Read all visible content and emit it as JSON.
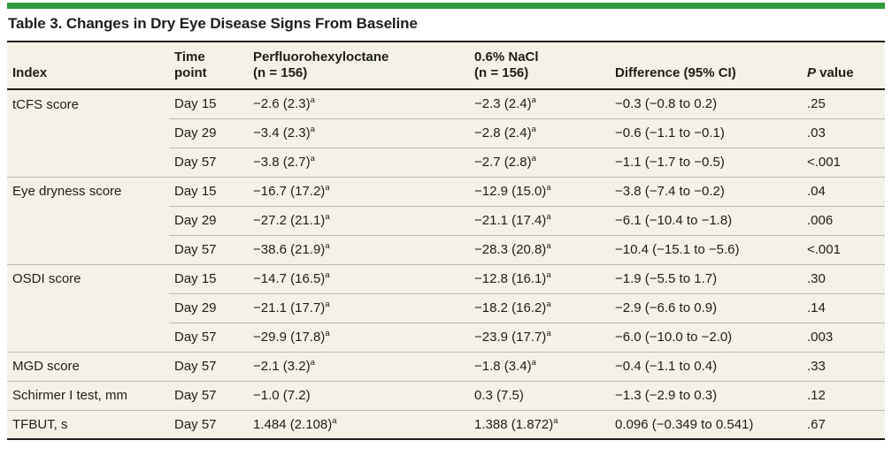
{
  "title": "Table 3. Changes in Dry Eye Disease Signs From Baseline",
  "colors": {
    "accent-bar": "#2f9b3c",
    "table-bg": "#f4f1e6",
    "text": "#1d1d1b",
    "rule-dark": "#1d1d1b",
    "rule-light": "#bdbab0",
    "page-bg": "#ffffff"
  },
  "columns": {
    "index": "Index",
    "time_line1": "Time",
    "time_line2": "point",
    "drug_line1": "Perfluorohexyloctane",
    "drug_line2": "(n = 156)",
    "nacl_line1": "0.6% NaCl",
    "nacl_line2": "(n = 156)",
    "difference": "Difference (95% CI)",
    "p_italic": "P",
    "p_rest": " value"
  },
  "rows": [
    {
      "index": "tCFS score",
      "time": "Day 15",
      "drug": "−2.6 (2.3)",
      "drug_sup": "a",
      "nacl": "−2.3 (2.4)",
      "nacl_sup": "a",
      "diff": "−0.3 (−0.8 to 0.2)",
      "p": ".25"
    },
    {
      "index": "",
      "time": "Day 29",
      "drug": "−3.4 (2.3)",
      "drug_sup": "a",
      "nacl": "−2.8 (2.4)",
      "nacl_sup": "a",
      "diff": "−0.6 (−1.1 to −0.1)",
      "p": ".03"
    },
    {
      "index": "",
      "time": "Day 57",
      "drug": "−3.8 (2.7)",
      "drug_sup": "a",
      "nacl": "−2.7 (2.8)",
      "nacl_sup": "a",
      "diff": "−1.1 (−1.7 to −0.5)",
      "p": "<.001"
    },
    {
      "index": "Eye dryness score",
      "time": "Day 15",
      "drug": "−16.7 (17.2)",
      "drug_sup": "a",
      "nacl": "−12.9 (15.0)",
      "nacl_sup": "a",
      "diff": "−3.8 (−7.4 to −0.2)",
      "p": ".04"
    },
    {
      "index": "",
      "time": "Day 29",
      "drug": "−27.2 (21.1)",
      "drug_sup": "a",
      "nacl": "−21.1 (17.4)",
      "nacl_sup": "a",
      "diff": "−6.1 (−10.4 to −1.8)",
      "p": ".006"
    },
    {
      "index": "",
      "time": "Day 57",
      "drug": "−38.6 (21.9)",
      "drug_sup": "a",
      "nacl": "−28.3 (20.8)",
      "nacl_sup": "a",
      "diff": "−10.4 (−15.1 to −5.6)",
      "p": "<.001"
    },
    {
      "index": "OSDI score",
      "time": "Day 15",
      "drug": "−14.7 (16.5)",
      "drug_sup": "a",
      "nacl": "−12.8 (16.1)",
      "nacl_sup": "a",
      "diff": "−1.9 (−5.5 to 1.7)",
      "p": ".30"
    },
    {
      "index": "",
      "time": "Day 29",
      "drug": "−21.1 (17.7)",
      "drug_sup": "a",
      "nacl": "−18.2 (16.2)",
      "nacl_sup": "a",
      "diff": "−2.9 (−6.6 to 0.9)",
      "p": ".14"
    },
    {
      "index": "",
      "time": "Day 57",
      "drug": "−29.9 (17.8)",
      "drug_sup": "a",
      "nacl": "−23.9 (17.7)",
      "nacl_sup": "a",
      "diff": "−6.0 (−10.0 to −2.0)",
      "p": ".003"
    },
    {
      "index": "MGD score",
      "time": "Day 57",
      "drug": "−2.1 (3.2)",
      "drug_sup": "a",
      "nacl": "−1.8 (3.4)",
      "nacl_sup": "a",
      "diff": "−0.4 (−1.1 to 0.4)",
      "p": ".33"
    },
    {
      "index": "Schirmer I test, mm",
      "time": "Day 57",
      "drug": "−1.0 (7.2)",
      "drug_sup": "",
      "nacl": "0.3 (7.5)",
      "nacl_sup": "",
      "diff": "−1.3 (−2.9 to 0.3)",
      "p": ".12"
    },
    {
      "index": "TFBUT, s",
      "time": "Day 57",
      "drug": "1.484 (2.108)",
      "drug_sup": "a",
      "nacl": "1.388 (1.872)",
      "nacl_sup": "a",
      "diff": "0.096 (−0.349 to 0.541)",
      "p": ".67"
    }
  ]
}
